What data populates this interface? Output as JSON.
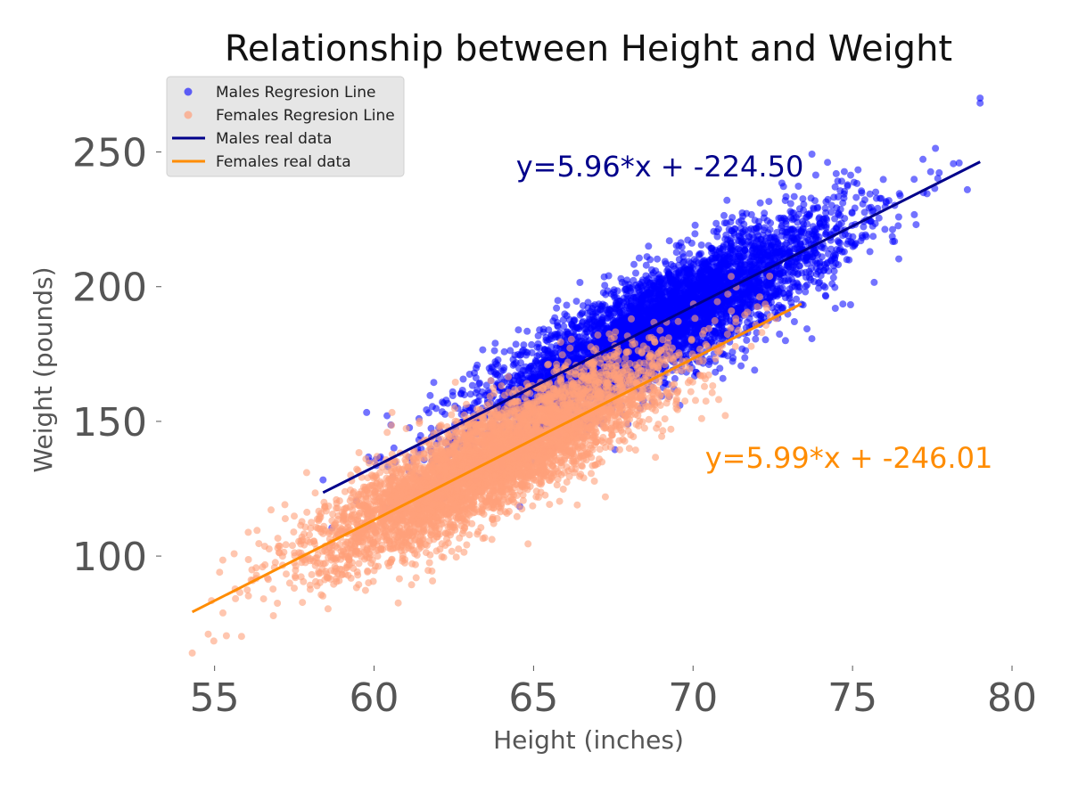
{
  "chart_data": {
    "type": "scatter",
    "title": "Relationship between Height and Weight",
    "xlabel": "Height (inches)",
    "ylabel": "Weight (pounds)",
    "xlim": [
      53.5,
      80
    ],
    "ylim": [
      60,
      275
    ],
    "xticks": [
      55,
      60,
      65,
      70,
      75,
      80
    ],
    "yticks": [
      100,
      150,
      200,
      250
    ],
    "grid": false,
    "legend_position": "top-left",
    "legend": [
      {
        "label": "Males Regresion Line",
        "kind": "marker",
        "color": "#0000ff"
      },
      {
        "label": "Females Regresion Line",
        "kind": "marker",
        "color": "#ffa07a"
      },
      {
        "label": "Males real data",
        "kind": "line",
        "color": "#00008b"
      },
      {
        "label": "Females real data",
        "kind": "line",
        "color": "#ff8c00"
      }
    ],
    "series": [
      {
        "name": "Males",
        "color": "#0000ff",
        "marker_opacity": 0.55,
        "n_points": 5000,
        "x_mean": 69.0,
        "x_sd": 2.86,
        "residual_sd": 10.0,
        "fit": {
          "slope": 5.96,
          "intercept": -224.5,
          "x_range": [
            58.4,
            79.0
          ],
          "color": "#00008b"
        },
        "equation": "y=5.96*x + -224.50",
        "equation_color": "#00008b",
        "outliers": [
          [
            79.0,
            270.0
          ],
          [
            78.6,
            236.0
          ]
        ]
      },
      {
        "name": "Females",
        "color": "#ffa07a",
        "marker_opacity": 0.6,
        "n_points": 5000,
        "x_mean": 63.7,
        "x_sd": 2.7,
        "residual_sd": 9.5,
        "fit": {
          "slope": 5.99,
          "intercept": -246.01,
          "x_range": [
            54.3,
            73.4
          ],
          "color": "#ff8c00"
        },
        "equation": "y=5.99*x + -246.01",
        "equation_color": "#ff8c00",
        "outliers": [
          [
            54.3,
            64.0
          ],
          [
            54.8,
            71.0
          ]
        ]
      }
    ]
  }
}
